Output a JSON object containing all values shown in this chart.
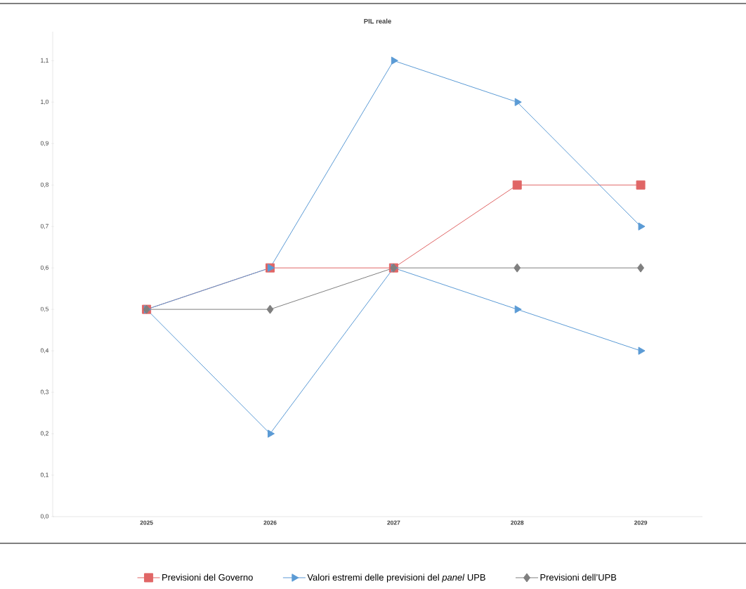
{
  "chart_data": {
    "type": "line",
    "title": "PIL reale",
    "categories": [
      "2025",
      "2026",
      "2027",
      "2028",
      "2029"
    ],
    "ylim": [
      0,
      1.17
    ],
    "yticks": [
      {
        "value": 0,
        "label": "0,0"
      },
      {
        "value": 0.1,
        "label": "0,1"
      },
      {
        "value": 0.2,
        "label": "0,2"
      },
      {
        "value": 0.3,
        "label": "0,3"
      },
      {
        "value": 0.4,
        "label": "0,4"
      },
      {
        "value": 0.5,
        "label": "0,5"
      },
      {
        "value": 0.6,
        "label": "0,6"
      },
      {
        "value": 0.7,
        "label": "0,7"
      },
      {
        "value": 0.8,
        "label": "0,8"
      },
      {
        "value": 0.9,
        "label": "0,9"
      },
      {
        "value": 1.0,
        "label": "1,0"
      },
      {
        "value": 1.1,
        "label": "1,1"
      }
    ],
    "grid": false,
    "legend": "bottom",
    "series": [
      {
        "name": "Previsioni del Governo",
        "color": "#e06666",
        "marker": "square",
        "values": [
          0.5,
          0.6,
          0.6,
          0.8,
          0.8
        ]
      },
      {
        "name": "Valori estremi delle previsioni del *panel* UPB",
        "color": "#5b9bd5",
        "marker": "triangle",
        "values": [
          0.5,
          0.6,
          1.1,
          1.0,
          0.7
        ]
      },
      {
        "color": "#5b9bd5",
        "marker": "triangle",
        "values": [
          0.5,
          0.2,
          0.6,
          0.5,
          0.4
        ]
      },
      {
        "name": "Previsioni dell’UPB",
        "color": "#7f7f7f",
        "marker": "diamond",
        "values": [
          0.5,
          0.5,
          0.6,
          0.6,
          0.6
        ]
      }
    ]
  }
}
